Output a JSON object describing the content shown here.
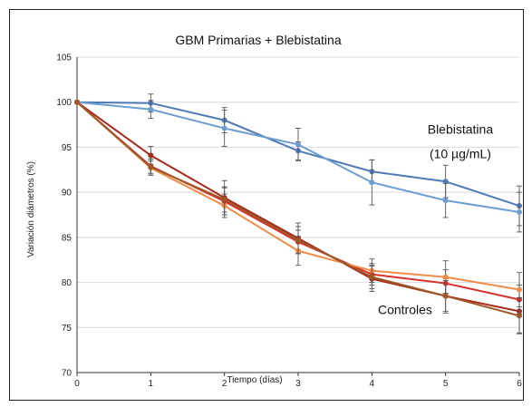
{
  "chart_data": {
    "type": "line",
    "title": "GBM Primarias + Blebistatina",
    "xlabel": "Tiempo (días)",
    "ylabel": "Variación diámetros (%)",
    "x": [
      0,
      1,
      2,
      3,
      4,
      5,
      6
    ],
    "xlim": [
      0,
      6
    ],
    "ylim": [
      70,
      105
    ],
    "yticks": [
      70,
      75,
      80,
      85,
      90,
      95,
      100,
      105
    ],
    "xticks": [
      0,
      1,
      2,
      3,
      4,
      5,
      6
    ],
    "grid": "horizontal",
    "annotations": [
      {
        "text": "Blebistatina",
        "x": 5.2,
        "y": 96.5
      },
      {
        "text": "(10 µg/mL)",
        "x": 5.2,
        "y": 93.8
      },
      {
        "text": "Controles",
        "x": 4.45,
        "y": 76.5
      }
    ],
    "series": [
      {
        "color": "#4f7ab5",
        "values": [
          100,
          99.9,
          98.0,
          94.6,
          92.3,
          91.2,
          88.5
        ],
        "errors": [
          0,
          1.0,
          1.4,
          1.0,
          1.3,
          1.8,
          2.2
        ]
      },
      {
        "color": "#6d9ed2",
        "values": [
          100,
          99.2,
          97.1,
          95.3,
          91.1,
          89.1,
          87.8
        ],
        "errors": [
          0,
          1.0,
          2.0,
          1.8,
          2.5,
          1.9,
          2.2
        ]
      },
      {
        "color": "#a82a1c",
        "values": [
          100,
          94.1,
          89.4,
          84.9,
          80.4,
          78.5,
          76.8
        ],
        "errors": [
          0,
          1.0,
          1.9,
          1.7,
          1.4,
          1.9,
          2.4
        ]
      },
      {
        "color": "#d6302a",
        "values": [
          100,
          92.9,
          89.0,
          84.5,
          80.9,
          79.9,
          78.1
        ],
        "errors": [
          0,
          0.8,
          1.5,
          1.3,
          1.2,
          1.5,
          1.6
        ]
      },
      {
        "color": "#f08c4a",
        "values": [
          100,
          92.7,
          88.5,
          83.5,
          81.3,
          80.6,
          79.2
        ],
        "errors": [
          0,
          0.8,
          1.3,
          1.6,
          1.3,
          1.8,
          1.9
        ]
      },
      {
        "color": "#9c5a28",
        "values": [
          100,
          92.8,
          89.2,
          84.7,
          80.6,
          78.5,
          76.3
        ],
        "errors": [
          0,
          0.9,
          1.4,
          1.5,
          1.3,
          1.7,
          2.0
        ]
      }
    ]
  }
}
